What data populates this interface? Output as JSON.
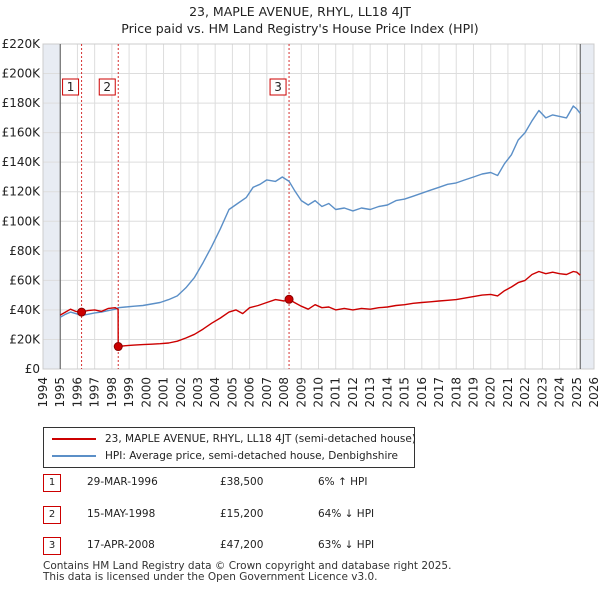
{
  "title_line1": "23, MAPLE AVENUE, RHYL, LL18 4JT",
  "title_line2": "Price paid vs. HM Land Registry's House Price Index (HPI)",
  "colors": {
    "property": "#cc0000",
    "hpi": "#5b8fc7",
    "grid": "#dddddd",
    "shade": "#e8ecf3",
    "marker_line": "#cc0000"
  },
  "legend": {
    "property_label": "23, MAPLE AVENUE, RHYL, LL18 4JT (semi-detached house)",
    "hpi_label": "HPI: Average price, semi-detached house, Denbighshire"
  },
  "sales": [
    {
      "badge": "1",
      "date": "29-MAR-1996",
      "price": "£38,500",
      "hpi": "6% ↑ HPI"
    },
    {
      "badge": "2",
      "date": "15-MAY-1998",
      "price": "£15,200",
      "hpi": "64% ↓ HPI"
    },
    {
      "badge": "3",
      "date": "17-APR-2008",
      "price": "£47,200",
      "hpi": "63% ↓ HPI"
    }
  ],
  "footer_line1": "Contains HM Land Registry data © Crown copyright and database right 2025.",
  "footer_line2": "This data is licensed under the Open Government Licence v3.0.",
  "chart_data": {
    "type": "line",
    "title": "23, MAPLE AVENUE, RHYL, LL18 4JT — Price paid vs. HM Land Registry's House Price Index (HPI)",
    "xlim": [
      1994,
      2026
    ],
    "ylim": [
      0,
      220000
    ],
    "x_ticks": [
      1994,
      1995,
      1996,
      1997,
      1998,
      1999,
      2000,
      2001,
      2002,
      2003,
      2004,
      2005,
      2006,
      2007,
      2008,
      2009,
      2010,
      2011,
      2012,
      2013,
      2014,
      2015,
      2016,
      2017,
      2018,
      2019,
      2020,
      2021,
      2022,
      2023,
      2024,
      2025,
      2026
    ],
    "y_ticks": [
      {
        "value": 0,
        "label": "£0"
      },
      {
        "value": 20000,
        "label": "£20K"
      },
      {
        "value": 40000,
        "label": "£40K"
      },
      {
        "value": 60000,
        "label": "£60K"
      },
      {
        "value": 80000,
        "label": "£80K"
      },
      {
        "value": 100000,
        "label": "£100K"
      },
      {
        "value": 120000,
        "label": "£120K"
      },
      {
        "value": 140000,
        "label": "£140K"
      },
      {
        "value": 160000,
        "label": "£160K"
      },
      {
        "value": 180000,
        "label": "£180K"
      },
      {
        "value": 200000,
        "label": "£200K"
      },
      {
        "value": 220000,
        "label": "£220K"
      }
    ],
    "shaded_ranges": [
      [
        1994,
        1995.0
      ],
      [
        2025.2,
        2026
      ]
    ],
    "sale_markers": [
      {
        "label": "1",
        "x": 1996.24,
        "y": 38500
      },
      {
        "label": "2",
        "x": 1998.37,
        "y": 15200
      },
      {
        "label": "3",
        "x": 2008.29,
        "y": 47200
      }
    ],
    "series": [
      {
        "name": "23, MAPLE AVENUE, RHYL, LL18 4JT (semi-detached house)",
        "color": "#cc0000",
        "points": [
          [
            1995.0,
            36500
          ],
          [
            1995.3,
            38500
          ],
          [
            1995.6,
            40500
          ],
          [
            1995.9,
            39000
          ],
          [
            1996.24,
            38500
          ],
          [
            1996.6,
            39500
          ],
          [
            1997.0,
            40000
          ],
          [
            1997.4,
            39000
          ],
          [
            1997.8,
            41000
          ],
          [
            1998.2,
            41500
          ],
          [
            1998.36,
            40500
          ],
          [
            1998.37,
            15200
          ],
          [
            1998.8,
            15800
          ],
          [
            1999.3,
            16200
          ],
          [
            1999.8,
            16500
          ],
          [
            2000.3,
            16800
          ],
          [
            2000.8,
            17100
          ],
          [
            2001.3,
            17600
          ],
          [
            2001.8,
            18800
          ],
          [
            2002.3,
            21000
          ],
          [
            2002.8,
            23500
          ],
          [
            2003.3,
            27000
          ],
          [
            2003.8,
            31000
          ],
          [
            2004.3,
            34500
          ],
          [
            2004.8,
            38500
          ],
          [
            2005.2,
            40000
          ],
          [
            2005.6,
            37500
          ],
          [
            2006.0,
            41500
          ],
          [
            2006.5,
            43000
          ],
          [
            2007.0,
            45000
          ],
          [
            2007.5,
            47000
          ],
          [
            2008.0,
            46000
          ],
          [
            2008.29,
            47200
          ],
          [
            2008.6,
            45000
          ],
          [
            2009.0,
            42500
          ],
          [
            2009.4,
            40500
          ],
          [
            2009.8,
            43500
          ],
          [
            2010.2,
            41500
          ],
          [
            2010.6,
            42000
          ],
          [
            2011.0,
            40000
          ],
          [
            2011.5,
            41000
          ],
          [
            2012.0,
            40000
          ],
          [
            2012.5,
            41000
          ],
          [
            2013.0,
            40500
          ],
          [
            2013.5,
            41500
          ],
          [
            2014.0,
            42000
          ],
          [
            2014.5,
            43000
          ],
          [
            2015.0,
            43500
          ],
          [
            2015.5,
            44500
          ],
          [
            2016.0,
            45000
          ],
          [
            2016.5,
            45500
          ],
          [
            2017.0,
            46000
          ],
          [
            2017.5,
            46500
          ],
          [
            2018.0,
            47000
          ],
          [
            2018.5,
            48000
          ],
          [
            2019.0,
            49000
          ],
          [
            2019.5,
            50000
          ],
          [
            2020.0,
            50500
          ],
          [
            2020.4,
            49500
          ],
          [
            2020.8,
            53000
          ],
          [
            2021.2,
            55500
          ],
          [
            2021.6,
            58500
          ],
          [
            2022.0,
            60000
          ],
          [
            2022.4,
            64000
          ],
          [
            2022.8,
            66000
          ],
          [
            2023.2,
            64500
          ],
          [
            2023.6,
            65500
          ],
          [
            2024.0,
            64500
          ],
          [
            2024.4,
            64000
          ],
          [
            2024.8,
            66000
          ],
          [
            2025.0,
            65500
          ],
          [
            2025.2,
            63500
          ]
        ]
      },
      {
        "name": "HPI: Average price, semi-detached house, Denbighshire",
        "color": "#5b8fc7",
        "points": [
          [
            1995.0,
            35000
          ],
          [
            1995.3,
            37000
          ],
          [
            1995.6,
            38500
          ],
          [
            1995.9,
            37500
          ],
          [
            1996.24,
            36300
          ],
          [
            1996.6,
            37000
          ],
          [
            1997.0,
            38000
          ],
          [
            1997.4,
            38500
          ],
          [
            1997.8,
            39500
          ],
          [
            1998.2,
            40500
          ],
          [
            1998.37,
            41500
          ],
          [
            1998.8,
            42000
          ],
          [
            1999.3,
            42500
          ],
          [
            1999.8,
            43000
          ],
          [
            2000.3,
            44000
          ],
          [
            2000.8,
            45000
          ],
          [
            2001.3,
            47000
          ],
          [
            2001.8,
            49500
          ],
          [
            2002.3,
            55000
          ],
          [
            2002.8,
            62000
          ],
          [
            2003.3,
            72000
          ],
          [
            2003.8,
            83000
          ],
          [
            2004.3,
            95000
          ],
          [
            2004.8,
            108000
          ],
          [
            2005.3,
            112000
          ],
          [
            2005.8,
            116000
          ],
          [
            2006.2,
            123000
          ],
          [
            2006.6,
            125000
          ],
          [
            2007.0,
            128000
          ],
          [
            2007.5,
            127000
          ],
          [
            2007.9,
            130000
          ],
          [
            2008.29,
            127000
          ],
          [
            2008.6,
            121000
          ],
          [
            2009.0,
            114000
          ],
          [
            2009.4,
            111000
          ],
          [
            2009.8,
            114000
          ],
          [
            2010.2,
            110000
          ],
          [
            2010.6,
            112000
          ],
          [
            2011.0,
            108000
          ],
          [
            2011.5,
            109000
          ],
          [
            2012.0,
            107000
          ],
          [
            2012.5,
            109000
          ],
          [
            2013.0,
            108000
          ],
          [
            2013.5,
            110000
          ],
          [
            2014.0,
            111000
          ],
          [
            2014.5,
            114000
          ],
          [
            2015.0,
            115000
          ],
          [
            2015.5,
            117000
          ],
          [
            2016.0,
            119000
          ],
          [
            2016.5,
            121000
          ],
          [
            2017.0,
            123000
          ],
          [
            2017.5,
            125000
          ],
          [
            2018.0,
            126000
          ],
          [
            2018.5,
            128000
          ],
          [
            2019.0,
            130000
          ],
          [
            2019.5,
            132000
          ],
          [
            2020.0,
            133000
          ],
          [
            2020.4,
            131000
          ],
          [
            2020.8,
            139000
          ],
          [
            2021.2,
            145000
          ],
          [
            2021.6,
            155000
          ],
          [
            2022.0,
            160000
          ],
          [
            2022.4,
            168000
          ],
          [
            2022.8,
            175000
          ],
          [
            2023.2,
            170000
          ],
          [
            2023.6,
            172000
          ],
          [
            2024.0,
            171000
          ],
          [
            2024.4,
            170000
          ],
          [
            2024.8,
            178000
          ],
          [
            2025.0,
            176000
          ],
          [
            2025.2,
            173000
          ]
        ]
      }
    ]
  }
}
